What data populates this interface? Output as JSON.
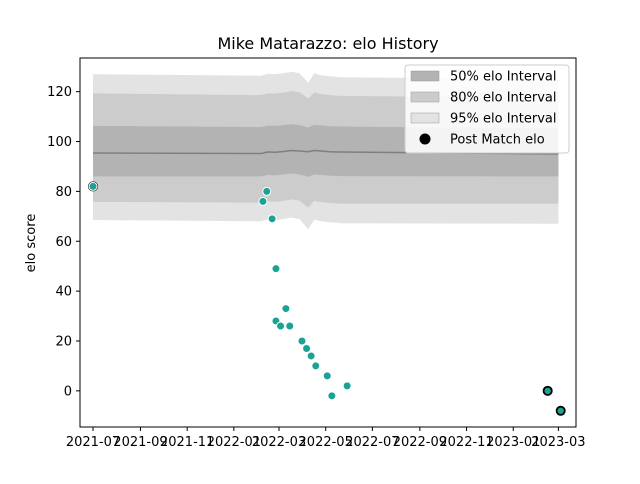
{
  "chart_data": {
    "type": "scatter",
    "title": "Mike Matarazzo: elo History",
    "xlabel": "",
    "ylabel": "elo score",
    "x_range": [
      "2021-06-14",
      "2023-03-24"
    ],
    "ylim": [
      -14.5,
      133.5
    ],
    "x_tick_labels": [
      "2021-07",
      "2021-09",
      "2021-11",
      "2022-01",
      "2022-03",
      "2022-05",
      "2022-07",
      "2022-09",
      "2022-11",
      "2023-01",
      "2023-03"
    ],
    "y_ticks": [
      0,
      20,
      40,
      60,
      80,
      100,
      120
    ],
    "y_tick_labels": [
      "0",
      "20",
      "40",
      "60",
      "80",
      "100",
      "120"
    ],
    "legend_position": "top-right",
    "legend": [
      {
        "label": "50% elo Interval",
        "color": "#b3b3b3"
      },
      {
        "label": "80% elo Interval",
        "color": "#cccccc"
      },
      {
        "label": "95% elo Interval",
        "color": "#e3e3e3"
      },
      {
        "label": "Post Match elo",
        "color": "#000000"
      }
    ],
    "mean_line_color": "#7f7f7f",
    "interval_bands": {
      "dates": [
        "2021-07-01",
        "2022-02-06",
        "2022-02-14",
        "2022-02-24",
        "2022-03-07",
        "2022-03-17",
        "2022-03-28",
        "2022-04-08",
        "2022-04-16",
        "2022-04-25",
        "2022-05-06",
        "2022-05-20",
        "2023-03-01"
      ],
      "mean": [
        95.4,
        95.2,
        95.8,
        95.7,
        96.0,
        96.4,
        96.2,
        95.9,
        96.4,
        96.2,
        95.9,
        95.8,
        95.0
      ],
      "p50_lower": [
        86.0,
        86.0,
        86.6,
        86.4,
        86.8,
        87.2,
        86.8,
        85.8,
        86.8,
        86.6,
        86.3,
        86.1,
        86.0
      ],
      "p50_upper": [
        106.3,
        105.8,
        106.4,
        106.3,
        106.6,
        107.0,
        106.6,
        105.6,
        106.7,
        106.5,
        106.2,
        106.0,
        105.2
      ],
      "p80_lower": [
        75.8,
        75.5,
        76.0,
        75.8,
        76.2,
        76.8,
        76.3,
        73.5,
        76.2,
        75.7,
        75.4,
        75.1,
        75.1
      ],
      "p80_upper": [
        119.3,
        118.6,
        119.3,
        119.2,
        119.6,
        120.2,
        119.7,
        117.2,
        119.7,
        119.0,
        118.6,
        118.3,
        117.5
      ],
      "p95_lower": [
        68.5,
        68.0,
        68.7,
        68.4,
        68.9,
        69.5,
        68.8,
        64.8,
        68.6,
        68.0,
        67.6,
        67.2,
        67.0
      ],
      "p95_upper": [
        127.0,
        126.4,
        127.2,
        127.0,
        127.4,
        128.0,
        127.4,
        123.5,
        127.4,
        126.6,
        126.2,
        125.8,
        125.0
      ]
    },
    "series": [
      {
        "name": "Post Match elo",
        "color": "#1aa394",
        "points": [
          {
            "x": "2021-07-01",
            "y": 82
          },
          {
            "x": "2022-02-08",
            "y": 76
          },
          {
            "x": "2022-02-13",
            "y": 80
          },
          {
            "x": "2022-02-20",
            "y": 69
          },
          {
            "x": "2022-02-25",
            "y": 49
          },
          {
            "x": "2022-02-25",
            "y": 28
          },
          {
            "x": "2022-03-03",
            "y": 26
          },
          {
            "x": "2022-03-10",
            "y": 33
          },
          {
            "x": "2022-03-15",
            "y": 26
          },
          {
            "x": "2022-03-31",
            "y": 20
          },
          {
            "x": "2022-04-06",
            "y": 17
          },
          {
            "x": "2022-04-12",
            "y": 14
          },
          {
            "x": "2022-04-18",
            "y": 10
          },
          {
            "x": "2022-05-03",
            "y": 6
          },
          {
            "x": "2022-05-09",
            "y": -2
          },
          {
            "x": "2022-05-29",
            "y": 2
          },
          {
            "x": "2023-02-15",
            "y": 0
          },
          {
            "x": "2023-03-04",
            "y": -8
          }
        ]
      }
    ]
  }
}
